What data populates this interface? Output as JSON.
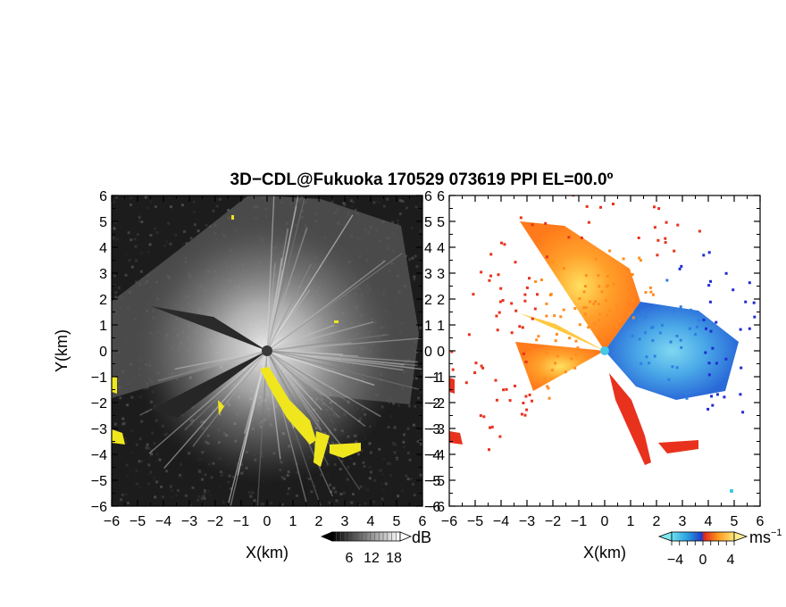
{
  "title": "3D−CDL@Fukuoka 170529 073619 PPI EL=00.0º",
  "chart_data": [
    {
      "type": "heatmap",
      "panel": "reflectivity",
      "xlabel": "X(km)",
      "ylabel": "Y(km)",
      "xlim": [
        -6,
        6
      ],
      "ylim": [
        -6,
        6
      ],
      "x_ticks": [
        "−6",
        "−5",
        "−4",
        "−3",
        "−2",
        "−1",
        "0",
        "1",
        "2",
        "3",
        "4",
        "5",
        "6"
      ],
      "y_ticks": [
        "−6",
        "−5",
        "−4",
        "−3",
        "−2",
        "−1",
        "0",
        "1",
        "2",
        "3",
        "4",
        "5",
        "6"
      ],
      "colorbar": {
        "unit": "dB",
        "ticks": [
          "6",
          "12",
          "18"
        ],
        "range": [
          0,
          24
        ],
        "colormap": "grayscale"
      },
      "overlay_color": "#f0e61e",
      "background_color": "#1c1c1c"
    },
    {
      "type": "heatmap",
      "panel": "doppler velocity",
      "xlabel": "X(km)",
      "xlim": [
        -6,
        6
      ],
      "ylim": [
        -6,
        6
      ],
      "x_ticks": [
        "−6",
        "−5",
        "−4",
        "−3",
        "−2",
        "−1",
        "0",
        "1",
        "2",
        "3",
        "4",
        "5",
        "6"
      ],
      "y_ticks": [
        "−6",
        "−5",
        "−4",
        "−3",
        "−2",
        "−1",
        "0",
        "1",
        "2",
        "3",
        "4",
        "5",
        "6"
      ],
      "colorbar": {
        "unit": "ms",
        "unit_exponent": "−1",
        "ticks": [
          "−4",
          "0",
          "4"
        ],
        "range": [
          -6,
          6
        ],
        "colormap": "cyan-blue-red-orange-yellow"
      },
      "colors": {
        "receding": "#ff8c1e",
        "approaching": "#2f7fe0",
        "edge_red": "#e8321e",
        "edge_blue": "#1e2dd0",
        "cyan": "#46c8e6"
      }
    }
  ]
}
